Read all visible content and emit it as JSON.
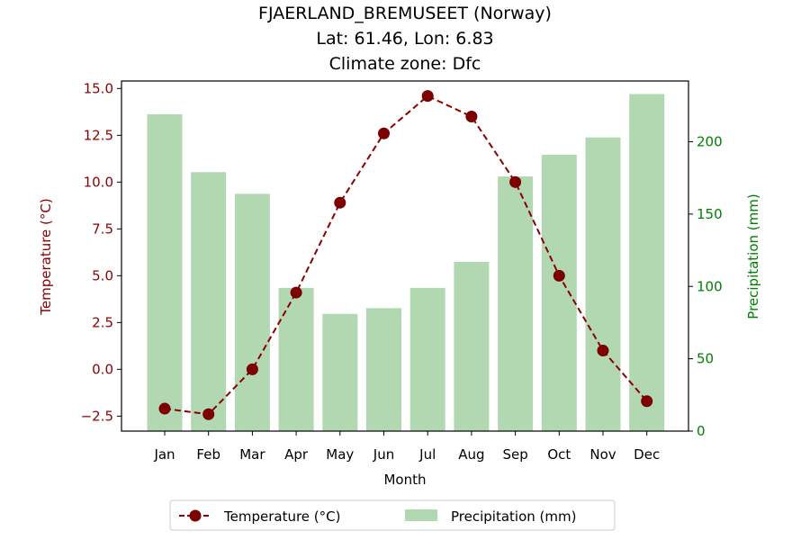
{
  "chart_data": {
    "type": "bar+line",
    "title_lines": [
      "FJAERLAND_BREMUSEET (Norway)",
      "Lat: 61.46, Lon: 6.83",
      "Climate zone: Dfc"
    ],
    "categories": [
      "Jan",
      "Feb",
      "Mar",
      "Apr",
      "May",
      "Jun",
      "Jul",
      "Aug",
      "Sep",
      "Oct",
      "Nov",
      "Dec"
    ],
    "xlabel": "Month",
    "ylabel_left": "Temperature (°C)",
    "ylabel_right": "Precipitation (mm)",
    "ylim_left": [
      -3.3,
      15.4
    ],
    "ylim_right": [
      0,
      242
    ],
    "yticks_left": [
      "−2.5",
      "0.0",
      "2.5",
      "5.0",
      "7.5",
      "10.0",
      "12.5",
      "15.0"
    ],
    "yticks_left_values": [
      -2.5,
      0,
      2.5,
      5,
      7.5,
      10,
      12.5,
      15
    ],
    "yticks_right": [
      "0",
      "50",
      "100",
      "150",
      "200"
    ],
    "yticks_right_values": [
      0,
      50,
      100,
      150,
      200
    ],
    "series": [
      {
        "name": "Temperature (°C)",
        "type": "line",
        "axis": "left",
        "color": "#8b0000",
        "style": "dashed",
        "marker": "circle",
        "values": [
          -2.1,
          -2.4,
          0.0,
          4.1,
          8.9,
          12.6,
          14.6,
          13.5,
          10.0,
          5.0,
          1.0,
          -1.7
        ]
      },
      {
        "name": "Precipitation (mm)",
        "type": "bar",
        "axis": "right",
        "color": "#b2d8b2",
        "values": [
          219,
          179,
          164,
          99,
          81,
          85,
          99,
          117,
          176,
          191,
          203,
          233
        ]
      }
    ],
    "left_axis_color": "#8b0000",
    "right_axis_color": "#008000",
    "legend": {
      "placement": "bottom-center",
      "entries": [
        "Temperature (°C)",
        "Precipitation (mm)"
      ]
    },
    "grid": false
  }
}
